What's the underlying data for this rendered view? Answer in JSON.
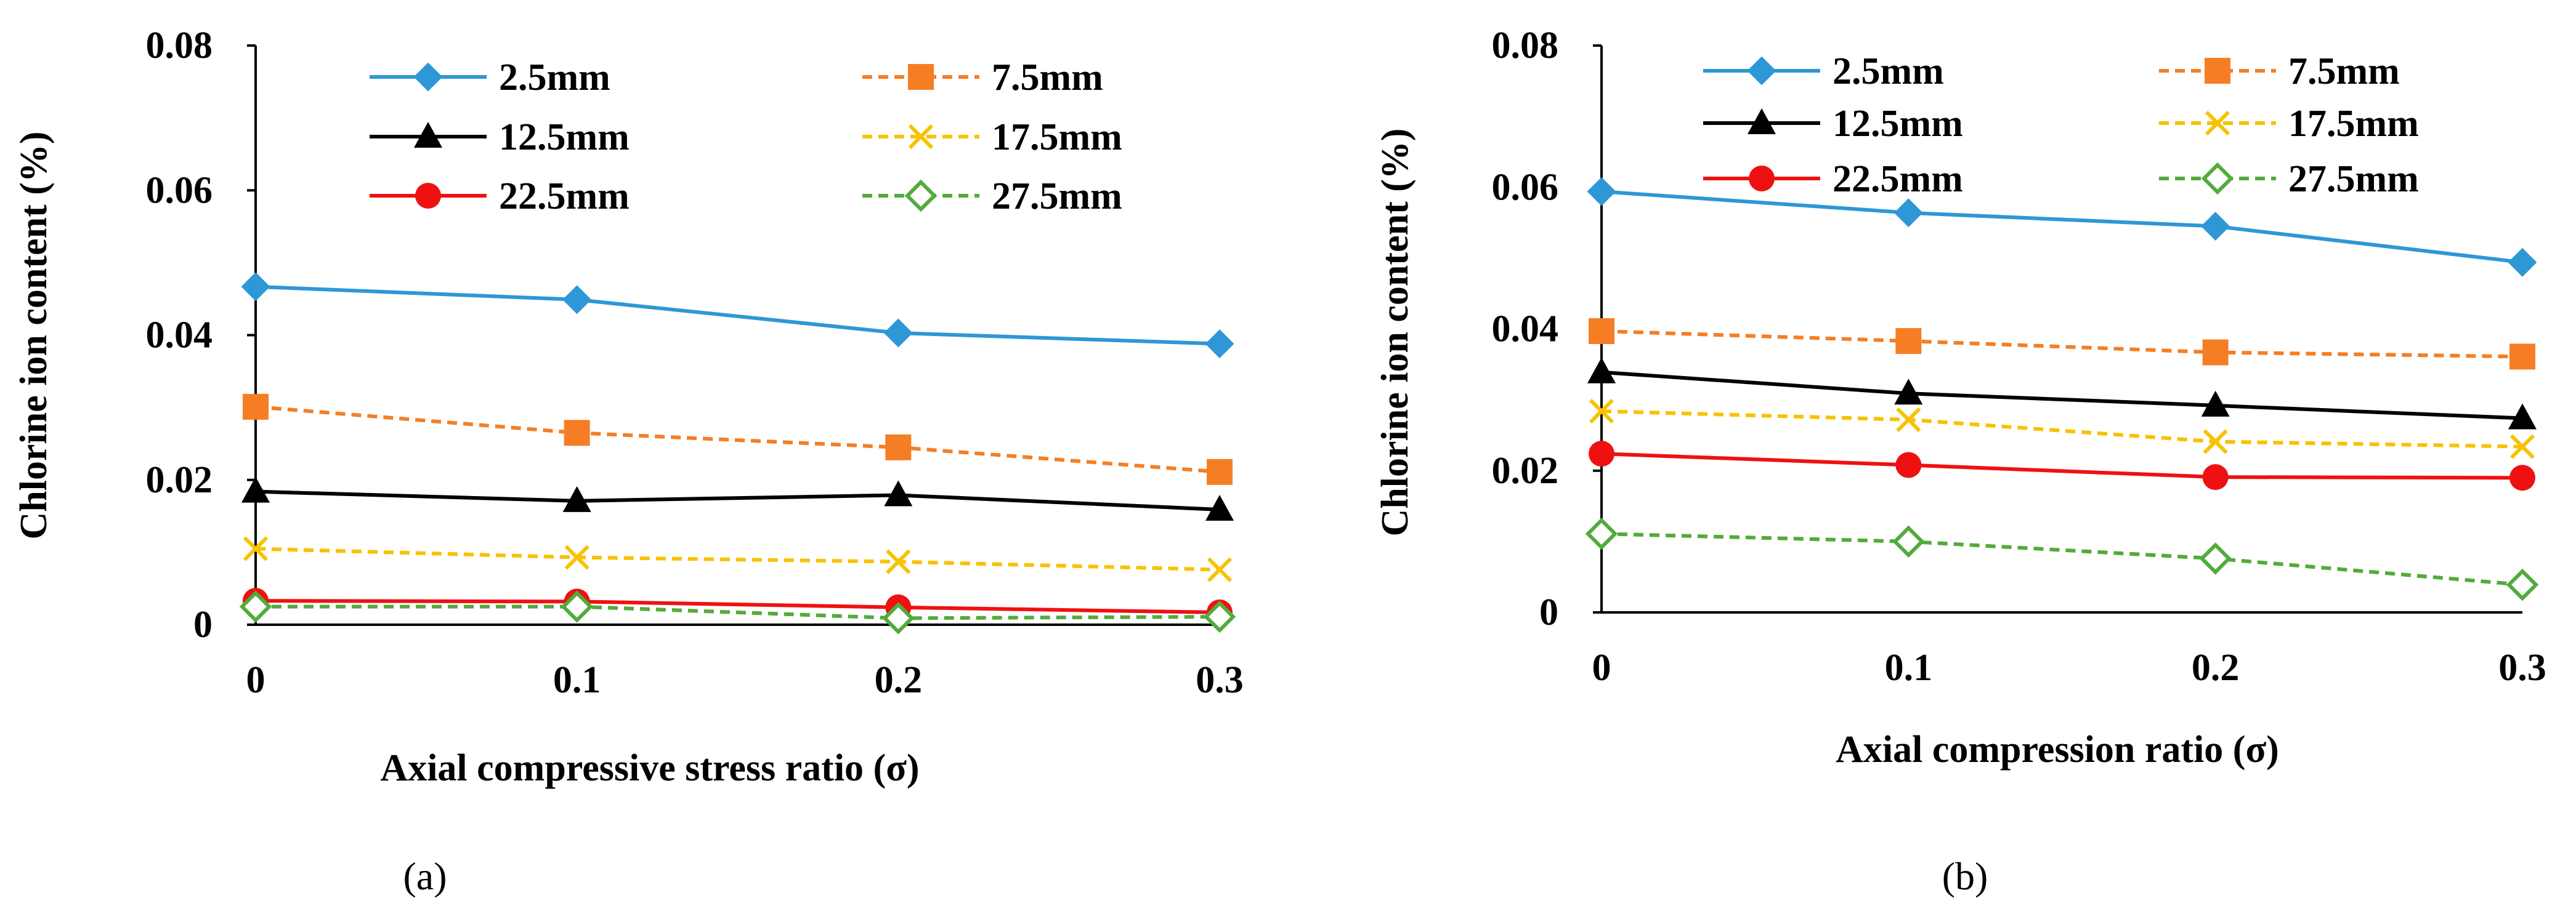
{
  "colors": {
    "s1": "#2e97d6",
    "s2": "#f57e24",
    "s3": "#000000",
    "s4": "#f7c200",
    "s5": "#ef1111",
    "s6": "#52ab3c"
  },
  "chart_data": [
    {
      "type": "line",
      "caption": "(a)",
      "title": "",
      "xlabel": "Axial compressive stress ratio (σ)",
      "ylabel": "Chlorine ion content  (%)",
      "x": [
        0,
        0.1,
        0.2,
        0.3
      ],
      "xtick_labels": [
        "0",
        "0.1",
        "0.2",
        "0.3"
      ],
      "ytick_labels": [
        "0",
        "0.02",
        "0.04",
        "0.06",
        "0.08"
      ],
      "ylim": [
        0,
        0.08
      ],
      "series": [
        {
          "name": "2.5mm",
          "values": [
            0.0467,
            0.0449,
            0.0403,
            0.0388
          ],
          "marker": "diamond",
          "dashed": false
        },
        {
          "name": "7.5mm",
          "values": [
            0.0301,
            0.0265,
            0.0245,
            0.0211
          ],
          "marker": "square",
          "dashed": true
        },
        {
          "name": "12.5mm",
          "values": [
            0.0184,
            0.0171,
            0.0179,
            0.0159
          ],
          "marker": "triangle",
          "dashed": false
        },
        {
          "name": "17.5mm",
          "values": [
            0.0105,
            0.0093,
            0.0087,
            0.0076
          ],
          "marker": "x",
          "dashed": true
        },
        {
          "name": "22.5mm",
          "values": [
            0.0033,
            0.0032,
            0.0024,
            0.0017
          ],
          "marker": "circle",
          "dashed": false
        },
        {
          "name": "27.5mm",
          "values": [
            0.0025,
            0.0025,
            0.0009,
            0.0011
          ],
          "marker": "open-diamond",
          "dashed": true
        }
      ]
    },
    {
      "type": "line",
      "caption": "(b)",
      "title": "",
      "xlabel": "Axial compression ratio (σ)",
      "ylabel": "Chlorine ion content  (%)",
      "x": [
        0,
        0.1,
        0.2,
        0.3
      ],
      "xtick_labels": [
        "0",
        "0.1",
        "0.2",
        "0.3"
      ],
      "ytick_labels": [
        "0",
        "0.02",
        "0.04",
        "0.06",
        "0.08"
      ],
      "ylim": [
        0,
        0.08
      ],
      "series": [
        {
          "name": "2.5mm",
          "values": [
            0.0594,
            0.0564,
            0.0545,
            0.0494
          ],
          "marker": "diamond",
          "dashed": false
        },
        {
          "name": "7.5mm",
          "values": [
            0.0397,
            0.0383,
            0.0367,
            0.0361
          ],
          "marker": "square",
          "dashed": true
        },
        {
          "name": "12.5mm",
          "values": [
            0.0339,
            0.0309,
            0.0292,
            0.0274
          ],
          "marker": "triangle",
          "dashed": false
        },
        {
          "name": "17.5mm",
          "values": [
            0.0284,
            0.0272,
            0.0241,
            0.0234
          ],
          "marker": "x",
          "dashed": true
        },
        {
          "name": "22.5mm",
          "values": [
            0.0224,
            0.0208,
            0.0191,
            0.019
          ],
          "marker": "circle",
          "dashed": false
        },
        {
          "name": "27.5mm",
          "values": [
            0.0111,
            0.01,
            0.0076,
            0.0039
          ],
          "marker": "open-diamond",
          "dashed": true
        }
      ]
    }
  ]
}
